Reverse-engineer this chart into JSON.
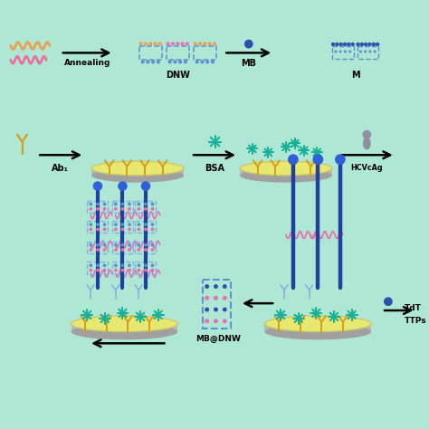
{
  "bg": "#aee8d5",
  "colors": {
    "strand_orange": "#e8a055",
    "strand_pink": "#e870a0",
    "dnw_blue": "#6090d0",
    "dnw_pink": "#e870b0",
    "dnw_orange": "#e8a055",
    "dnw_green": "#60b860",
    "mb_blue": "#3050b0",
    "electrode_gray": "#b8b8b8",
    "electrode_yellow": "#e8e870",
    "antibody_gold": "#d4a020",
    "bsa_teal": "#18b098",
    "ab2_blue": "#3060c0",
    "ab2_light": "#80b0e0",
    "dna_dark_blue": "#2040a0",
    "dna_navy": "#1030a0",
    "pink_helix": "#e870b0",
    "gray_blob": "#9090a0",
    "arrow_black": "#111111",
    "tdt_blue": "#3050b0",
    "white": "#ffffff"
  },
  "labels": {
    "annealing": "Annealing",
    "DNW": "DNW",
    "MB": "MB",
    "Ab1": "Ab₁",
    "BSA": "BSA",
    "HCVcAg": "HCVcAg",
    "MB_DNW": "MB@DNW",
    "TdT": "TdT",
    "TTPs": "TTPs"
  }
}
